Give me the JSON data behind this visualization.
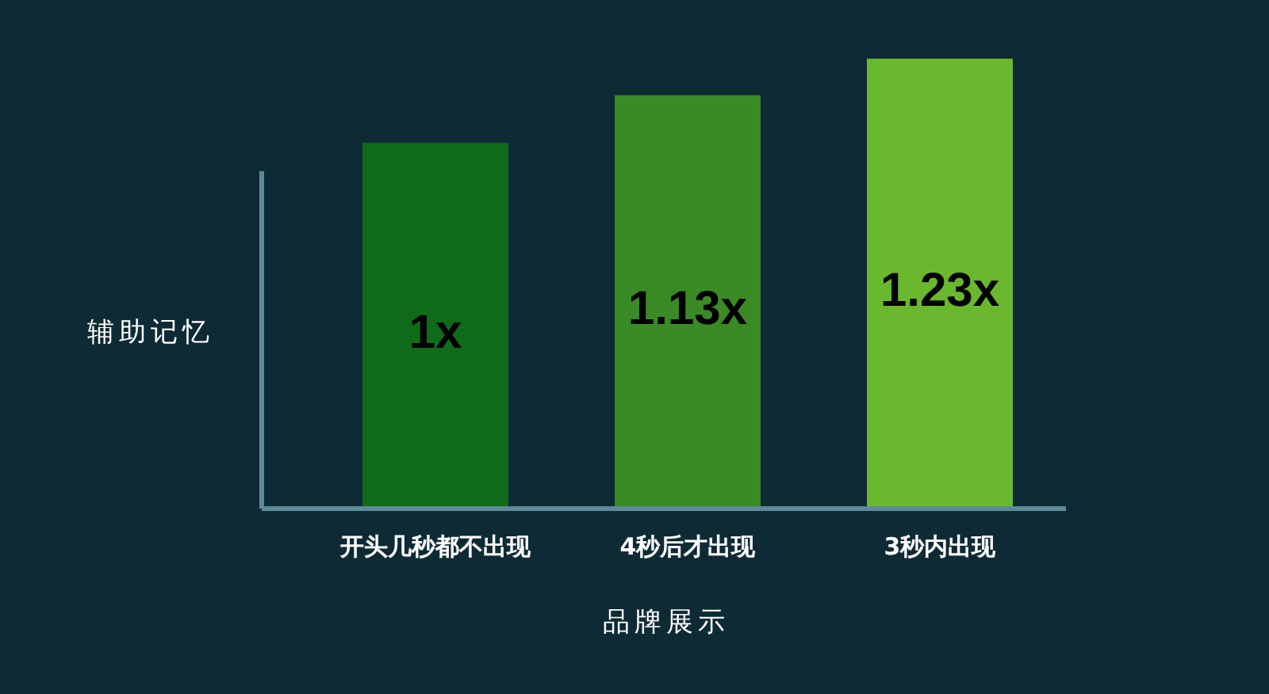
{
  "chart_data": {
    "type": "bar",
    "xlabel": "品牌展示",
    "ylabel": "辅助记忆",
    "categories": [
      "开头几秒都不出现",
      "4秒后才出现",
      "3秒内出现"
    ],
    "values": [
      1,
      1.13,
      1.23
    ],
    "colors": [
      "#0f6a1a",
      "#3a8a26",
      "#6ab82e"
    ],
    "value_labels": [
      "1x",
      "1.13x",
      "1.23x"
    ]
  }
}
